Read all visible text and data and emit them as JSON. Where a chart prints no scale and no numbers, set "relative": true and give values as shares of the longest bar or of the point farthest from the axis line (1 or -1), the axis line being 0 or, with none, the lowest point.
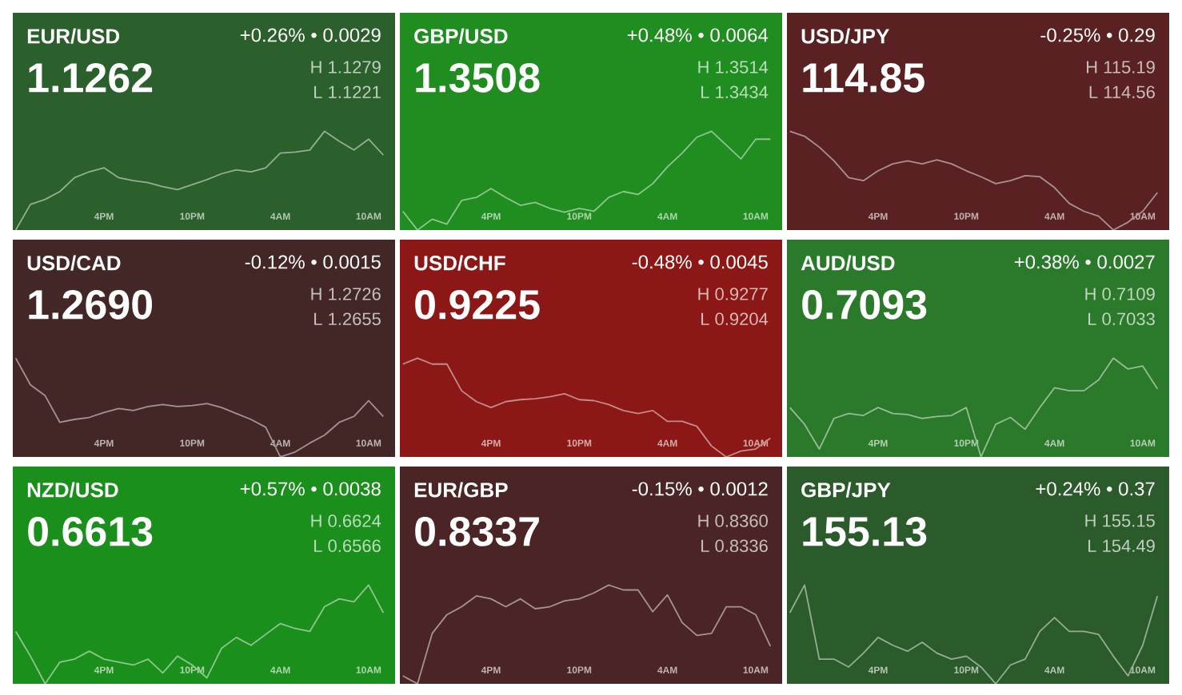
{
  "chart_data": [
    {
      "type": "line",
      "title": "EUR/USD",
      "subtitle": "1.1262",
      "annotations": [
        "+0.26% • 0.0029",
        "H 1.1279",
        "L 1.1221"
      ],
      "relative": true,
      "categories": [
        null,
        null,
        null,
        null,
        null,
        null,
        "4PM",
        null,
        null,
        null,
        null,
        null,
        "10PM",
        null,
        null,
        null,
        null,
        null,
        "4AM",
        null,
        null,
        null,
        null,
        null,
        "10AM",
        null
      ],
      "series": [
        {
          "color": "#95af95",
          "values": [
            0,
            0.26,
            0.31,
            0.39,
            0.53,
            0.59,
            0.63,
            0.53,
            0.5,
            0.48,
            0.44,
            0.41,
            0.46,
            0.51,
            0.57,
            0.61,
            0.59,
            0.63,
            0.78,
            0.79,
            0.81,
            1,
            0.9,
            0.81,
            0.92,
            0.76
          ]
        }
      ]
    },
    {
      "type": "line",
      "title": "GBP/USD",
      "subtitle": "1.3508",
      "annotations": [
        "+0.48% • 0.0064",
        "H 1.3514",
        "L 1.3434"
      ],
      "relative": true,
      "categories": [
        null,
        null,
        null,
        null,
        null,
        null,
        "4PM",
        null,
        null,
        null,
        null,
        null,
        "10PM",
        null,
        null,
        null,
        null,
        null,
        "4AM",
        null,
        null,
        null,
        null,
        null,
        "10AM",
        null
      ],
      "series": [
        {
          "color": "#8fc68f",
          "values": [
            0.19,
            0,
            0.11,
            0.06,
            0.3,
            0.33,
            0.42,
            0.33,
            0.25,
            0.28,
            0.22,
            0.18,
            0.22,
            0.19,
            0.33,
            0.39,
            0.36,
            0.47,
            0.64,
            0.78,
            0.94,
            1,
            0.86,
            0.72,
            0.92,
            0.92
          ]
        }
      ]
    },
    {
      "type": "line",
      "title": "USD/JPY",
      "subtitle": "114.85",
      "annotations": [
        "-0.25% • 0.29",
        "H 115.19",
        "L 114.56"
      ],
      "relative": true,
      "categories": [
        null,
        null,
        null,
        null,
        null,
        null,
        "4PM",
        null,
        null,
        null,
        null,
        null,
        "10PM",
        null,
        null,
        null,
        null,
        null,
        "4AM",
        null,
        null,
        null,
        null,
        null,
        "10AM",
        null
      ],
      "series": [
        {
          "color": "#ac9090",
          "values": [
            1,
            0.95,
            0.84,
            0.7,
            0.53,
            0.5,
            0.6,
            0.67,
            0.7,
            0.67,
            0.71,
            0.67,
            0.6,
            0.54,
            0.47,
            0.5,
            0.55,
            0.54,
            0.43,
            0.27,
            0.19,
            0.14,
            0,
            0.08,
            0.19,
            0.38
          ]
        }
      ]
    },
    {
      "type": "line",
      "title": "USD/CAD",
      "subtitle": "1.2690",
      "annotations": [
        "-0.12% • 0.0015",
        "H 1.2726",
        "L 1.2655"
      ],
      "relative": true,
      "categories": [
        null,
        null,
        null,
        null,
        null,
        null,
        "4PM",
        null,
        null,
        null,
        null,
        null,
        "10PM",
        null,
        null,
        null,
        null,
        null,
        "4AM",
        null,
        null,
        null,
        null,
        null,
        "10AM",
        null
      ],
      "series": [
        {
          "color": "#a19393",
          "values": [
            1,
            0.73,
            0.62,
            0.35,
            0.38,
            0.4,
            0.45,
            0.49,
            0.47,
            0.51,
            0.53,
            0.51,
            0.52,
            0.54,
            0.5,
            0.44,
            0.38,
            0.3,
            0,
            0.05,
            0.14,
            0.22,
            0.35,
            0.41,
            0.57,
            0.41
          ]
        }
      ]
    },
    {
      "type": "line",
      "title": "USD/CHF",
      "subtitle": "0.9225",
      "annotations": [
        "-0.48% • 0.0045",
        "H 0.9277",
        "L 0.9204"
      ],
      "relative": true,
      "categories": [
        null,
        null,
        null,
        null,
        null,
        null,
        "4PM",
        null,
        null,
        null,
        null,
        null,
        "10PM",
        null,
        null,
        null,
        null,
        null,
        "4AM",
        null,
        null,
        null,
        null,
        null,
        "10AM",
        null
      ],
      "series": [
        {
          "color": "#c58b8b",
          "values": [
            0.94,
            1,
            0.94,
            0.94,
            0.67,
            0.56,
            0.5,
            0.56,
            0.58,
            0.59,
            0.61,
            0.64,
            0.58,
            0.57,
            0.53,
            0.47,
            0.44,
            0.47,
            0.36,
            0.36,
            0.31,
            0.11,
            0,
            0.06,
            0.08,
            0.19
          ]
        }
      ]
    },
    {
      "type": "line",
      "title": "AUD/USD",
      "subtitle": "0.7093",
      "annotations": [
        "+0.38% • 0.0027",
        "H 0.7109",
        "L 0.7033"
      ],
      "relative": true,
      "categories": [
        null,
        null,
        null,
        null,
        null,
        null,
        "4PM",
        null,
        null,
        null,
        null,
        null,
        "10PM",
        null,
        null,
        null,
        null,
        null,
        "4AM",
        null,
        null,
        null,
        null,
        null,
        "10AM",
        null
      ],
      "series": [
        {
          "color": "#95bc95",
          "values": [
            0.5,
            0.33,
            0.08,
            0.39,
            0.44,
            0.42,
            0.5,
            0.44,
            0.43,
            0.39,
            0.41,
            0.42,
            0.5,
            0,
            0.33,
            0.4,
            0.28,
            0.5,
            0.7,
            0.67,
            0.67,
            0.78,
            1,
            0.89,
            0.92,
            0.69
          ]
        }
      ]
    },
    {
      "type": "line",
      "title": "NZD/USD",
      "subtitle": "0.6613",
      "annotations": [
        "+0.57% • 0.0038",
        "H 0.6624",
        "L 0.6566"
      ],
      "relative": true,
      "categories": [
        null,
        null,
        null,
        null,
        null,
        null,
        "4PM",
        null,
        null,
        null,
        null,
        null,
        "10PM",
        null,
        null,
        null,
        null,
        null,
        "4AM",
        null,
        null,
        null,
        null,
        null,
        "10AM",
        null
      ],
      "series": [
        {
          "color": "#8dc78d",
          "values": [
            0.53,
            0.28,
            0,
            0.22,
            0.25,
            0.33,
            0.25,
            0.22,
            0.19,
            0.25,
            0.11,
            0.28,
            0.19,
            0.06,
            0.36,
            0.47,
            0.39,
            0.5,
            0.61,
            0.56,
            0.53,
            0.78,
            0.86,
            0.83,
            1,
            0.72
          ]
        }
      ]
    },
    {
      "type": "line",
      "title": "EUR/GBP",
      "subtitle": "0.8337",
      "annotations": [
        "-0.15% • 0.0012",
        "H 0.8360",
        "L 0.8336"
      ],
      "relative": true,
      "categories": [
        null,
        null,
        null,
        null,
        null,
        null,
        "4PM",
        null,
        null,
        null,
        null,
        null,
        "10PM",
        null,
        null,
        null,
        null,
        null,
        "4AM",
        null,
        null,
        null,
        null,
        null,
        "10AM",
        null
      ],
      "series": [
        {
          "color": "#a59292",
          "values": [
            0.08,
            0,
            0.51,
            0.7,
            0.78,
            0.89,
            0.86,
            0.78,
            0.86,
            0.76,
            0.78,
            0.84,
            0.86,
            0.92,
            1,
            0.95,
            0.95,
            0.73,
            0.9,
            0.62,
            0.49,
            0.51,
            0.78,
            0.78,
            0.7,
            0.38
          ]
        }
      ]
    },
    {
      "type": "line",
      "title": "GBP/JPY",
      "subtitle": "155.13",
      "annotations": [
        "+0.24% • 0.37",
        "H 155.15",
        "L 154.49"
      ],
      "relative": true,
      "categories": [
        null,
        null,
        null,
        null,
        null,
        null,
        "4PM",
        null,
        null,
        null,
        null,
        null,
        "10PM",
        null,
        null,
        null,
        null,
        null,
        "4AM",
        null,
        null,
        null,
        null,
        null,
        "10AM",
        null
      ],
      "series": [
        {
          "color": "#95ad95",
          "values": [
            0.72,
            1,
            0.25,
            0.25,
            0.17,
            0.31,
            0.47,
            0.39,
            0.33,
            0.42,
            0.31,
            0.25,
            0.28,
            0.17,
            0,
            0.19,
            0.25,
            0.53,
            0.67,
            0.53,
            0.53,
            0.5,
            0.28,
            0.08,
            0.39,
            0.89
          ]
        }
      ]
    }
  ]
}
